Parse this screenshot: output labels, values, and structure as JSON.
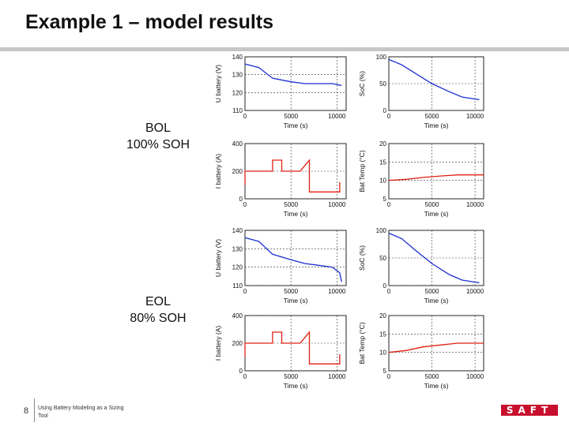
{
  "slide": {
    "title": "Example 1 – model results",
    "labels": {
      "bol": "BOL\n100% SOH",
      "eol": "EOL\n80% SOH"
    }
  },
  "footer": {
    "page_number": "8",
    "text": "Using Battery Modeling as a Sizing Tool",
    "logo_text": "saft"
  },
  "colors": {
    "blue": "#1a2fd0",
    "red": "#e02010",
    "logo": "#c8102e"
  },
  "chart_data": [
    {
      "type": "line",
      "panel": "BOL",
      "xlabel": "Time (s)",
      "ylabel": "U battery (V)",
      "xlim": [
        0,
        11000
      ],
      "ylim": [
        110,
        140
      ],
      "xticks": [
        0,
        5000,
        10000
      ],
      "yticks": [
        110,
        120,
        130,
        140
      ],
      "grid": true,
      "color": "blue",
      "x": [
        0,
        1500,
        3000,
        5000,
        6500,
        8000,
        9500,
        10500
      ],
      "y": [
        136,
        134,
        128,
        126,
        125,
        125,
        125,
        124
      ]
    },
    {
      "type": "line",
      "panel": "BOL",
      "xlabel": "Time (s)",
      "ylabel": "SoC (%)",
      "xlim": [
        0,
        11000
      ],
      "ylim": [
        0,
        100
      ],
      "xticks": [
        0,
        5000,
        10000
      ],
      "yticks": [
        0,
        50,
        100
      ],
      "grid": true,
      "color": "blue",
      "x": [
        0,
        1500,
        3000,
        5000,
        7000,
        8500,
        10500
      ],
      "y": [
        95,
        85,
        70,
        50,
        35,
        25,
        20
      ]
    },
    {
      "type": "line",
      "panel": "BOL",
      "xlabel": "Time (s)",
      "ylabel": "I battery (A)",
      "xlim": [
        0,
        11000
      ],
      "ylim": [
        0,
        400
      ],
      "xticks": [
        0,
        5000,
        10000
      ],
      "yticks": [
        0,
        200,
        400
      ],
      "grid": true,
      "color": "red",
      "x": [
        0,
        0,
        3000,
        3000,
        4000,
        4000,
        5500,
        6000,
        6000,
        7000,
        7000,
        10300,
        10300
      ],
      "y": [
        100,
        200,
        200,
        280,
        280,
        200,
        200,
        200,
        200,
        280,
        50,
        50,
        120
      ]
    },
    {
      "type": "line",
      "panel": "BOL",
      "xlabel": "Time (s)",
      "ylabel": "Bat Temp (°C)",
      "xlim": [
        0,
        11000
      ],
      "ylim": [
        5,
        20
      ],
      "xticks": [
        0,
        5000,
        10000
      ],
      "yticks": [
        5,
        10,
        15,
        20
      ],
      "grid": true,
      "color": "red",
      "x": [
        0,
        2000,
        4000,
        6000,
        8000,
        11000
      ],
      "y": [
        10,
        10.3,
        10.8,
        11.2,
        11.5,
        11.5
      ]
    },
    {
      "type": "line",
      "panel": "EOL",
      "xlabel": "Time (s)",
      "ylabel": "U battery (V)",
      "xlim": [
        0,
        11000
      ],
      "ylim": [
        110,
        140
      ],
      "xticks": [
        0,
        5000,
        10000
      ],
      "yticks": [
        110,
        120,
        130,
        140
      ],
      "grid": true,
      "color": "blue",
      "x": [
        0,
        1500,
        3000,
        5000,
        6500,
        8000,
        9500,
        10300,
        10500
      ],
      "y": [
        136,
        134,
        127,
        124,
        122,
        121,
        120,
        117,
        112
      ]
    },
    {
      "type": "line",
      "panel": "EOL",
      "xlabel": "Time (s)",
      "ylabel": "SoC (%)",
      "xlim": [
        0,
        11000
      ],
      "ylim": [
        0,
        100
      ],
      "xticks": [
        0,
        5000,
        10000
      ],
      "yticks": [
        0,
        50,
        100
      ],
      "grid": true,
      "color": "blue",
      "x": [
        0,
        1500,
        3000,
        5000,
        7000,
        8500,
        10500
      ],
      "y": [
        95,
        85,
        65,
        40,
        20,
        10,
        5
      ]
    },
    {
      "type": "line",
      "panel": "EOL",
      "xlabel": "Time (s)",
      "ylabel": "I battery (A)",
      "xlim": [
        0,
        11000
      ],
      "ylim": [
        0,
        400
      ],
      "xticks": [
        0,
        5000,
        10000
      ],
      "yticks": [
        0,
        200,
        400
      ],
      "grid": true,
      "color": "red",
      "x": [
        0,
        0,
        3000,
        3000,
        4000,
        4000,
        5500,
        6000,
        6000,
        7000,
        7000,
        10300,
        10300
      ],
      "y": [
        100,
        200,
        200,
        280,
        280,
        200,
        200,
        200,
        200,
        280,
        50,
        50,
        120
      ]
    },
    {
      "type": "line",
      "panel": "EOL",
      "xlabel": "Time (s)",
      "ylabel": "Bat Temp (°C)",
      "xlim": [
        0,
        11000
      ],
      "ylim": [
        5,
        20
      ],
      "xticks": [
        0,
        5000,
        10000
      ],
      "yticks": [
        5,
        10,
        15,
        20
      ],
      "grid": true,
      "color": "red",
      "x": [
        0,
        2000,
        4000,
        6000,
        8000,
        11000
      ],
      "y": [
        10,
        10.5,
        11.5,
        12,
        12.5,
        12.5
      ]
    }
  ]
}
